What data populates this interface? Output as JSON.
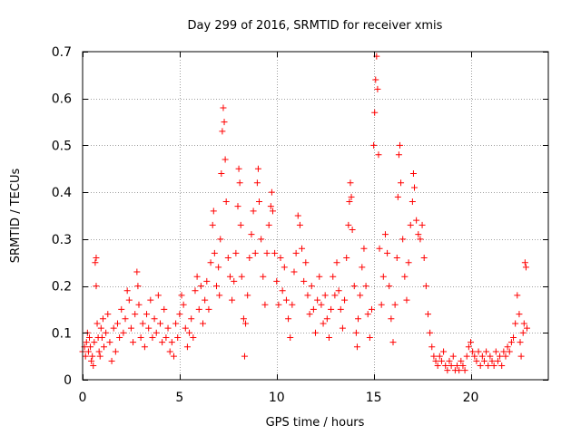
{
  "chart_data": {
    "type": "scatter",
    "title": "Day 299 of 2016, SRMTID for receiver xmis",
    "xlabel": "GPS time / hours",
    "ylabel": "SRMTID / TECUs",
    "xlim": [
      0,
      24
    ],
    "ylim": [
      0,
      0.7
    ],
    "xticks": [
      0,
      5,
      10,
      15,
      20
    ],
    "yticks": [
      0,
      0.1,
      0.2,
      0.3,
      0.4,
      0.5,
      0.6,
      0.7
    ],
    "xtick_labels": [
      "0",
      "5",
      "10",
      "15",
      "20"
    ],
    "ytick_labels": [
      "0",
      "0.1",
      "0.2",
      "0.3",
      "0.4",
      "0.5",
      "0.6",
      "0.7"
    ],
    "grid": true,
    "marker": "+",
    "color": "#ff0000",
    "series": [
      {
        "name": "SRMTID",
        "points": [
          [
            0.0,
            0.06
          ],
          [
            0.1,
            0.07
          ],
          [
            0.15,
            0.05
          ],
          [
            0.2,
            0.08
          ],
          [
            0.25,
            0.1
          ],
          [
            0.3,
            0.06
          ],
          [
            0.35,
            0.09
          ],
          [
            0.4,
            0.07
          ],
          [
            0.45,
            0.04
          ],
          [
            0.5,
            0.05
          ],
          [
            0.55,
            0.03
          ],
          [
            0.6,
            0.08
          ],
          [
            0.65,
            0.25
          ],
          [
            0.7,
            0.26
          ],
          [
            0.7,
            0.2
          ],
          [
            0.75,
            0.12
          ],
          [
            0.8,
            0.09
          ],
          [
            0.85,
            0.06
          ],
          [
            0.9,
            0.05
          ],
          [
            0.95,
            0.11
          ],
          [
            1.0,
            0.09
          ],
          [
            1.05,
            0.13
          ],
          [
            1.1,
            0.07
          ],
          [
            1.2,
            0.1
          ],
          [
            1.3,
            0.14
          ],
          [
            1.4,
            0.08
          ],
          [
            1.5,
            0.04
          ],
          [
            1.6,
            0.11
          ],
          [
            1.7,
            0.06
          ],
          [
            1.8,
            0.12
          ],
          [
            1.9,
            0.09
          ],
          [
            2.0,
            0.15
          ],
          [
            2.1,
            0.1
          ],
          [
            2.2,
            0.13
          ],
          [
            2.3,
            0.19
          ],
          [
            2.4,
            0.17
          ],
          [
            2.5,
            0.11
          ],
          [
            2.6,
            0.08
          ],
          [
            2.7,
            0.14
          ],
          [
            2.8,
            0.23
          ],
          [
            2.85,
            0.2
          ],
          [
            2.9,
            0.16
          ],
          [
            3.0,
            0.09
          ],
          [
            3.1,
            0.12
          ],
          [
            3.2,
            0.07
          ],
          [
            3.3,
            0.14
          ],
          [
            3.4,
            0.11
          ],
          [
            3.5,
            0.17
          ],
          [
            3.6,
            0.09
          ],
          [
            3.7,
            0.13
          ],
          [
            3.8,
            0.1
          ],
          [
            3.9,
            0.18
          ],
          [
            4.0,
            0.12
          ],
          [
            4.1,
            0.08
          ],
          [
            4.2,
            0.15
          ],
          [
            4.3,
            0.09
          ],
          [
            4.4,
            0.11
          ],
          [
            4.5,
            0.06
          ],
          [
            4.6,
            0.08
          ],
          [
            4.7,
            0.05
          ],
          [
            4.8,
            0.12
          ],
          [
            4.9,
            0.09
          ],
          [
            5.0,
            0.14
          ],
          [
            5.1,
            0.18
          ],
          [
            5.2,
            0.16
          ],
          [
            5.3,
            0.11
          ],
          [
            5.4,
            0.07
          ],
          [
            5.5,
            0.1
          ],
          [
            5.6,
            0.13
          ],
          [
            5.7,
            0.09
          ],
          [
            5.8,
            0.19
          ],
          [
            5.9,
            0.22
          ],
          [
            6.0,
            0.15
          ],
          [
            6.1,
            0.2
          ],
          [
            6.2,
            0.12
          ],
          [
            6.3,
            0.17
          ],
          [
            6.4,
            0.21
          ],
          [
            6.5,
            0.15
          ],
          [
            6.6,
            0.25
          ],
          [
            6.7,
            0.33
          ],
          [
            6.75,
            0.36
          ],
          [
            6.8,
            0.27
          ],
          [
            6.9,
            0.2
          ],
          [
            7.0,
            0.24
          ],
          [
            7.05,
            0.18
          ],
          [
            7.1,
            0.3
          ],
          [
            7.15,
            0.44
          ],
          [
            7.2,
            0.53
          ],
          [
            7.25,
            0.58
          ],
          [
            7.3,
            0.55
          ],
          [
            7.35,
            0.47
          ],
          [
            7.4,
            0.38
          ],
          [
            7.5,
            0.26
          ],
          [
            7.6,
            0.22
          ],
          [
            7.7,
            0.17
          ],
          [
            7.8,
            0.21
          ],
          [
            7.9,
            0.27
          ],
          [
            8.0,
            0.37
          ],
          [
            8.05,
            0.45
          ],
          [
            8.1,
            0.42
          ],
          [
            8.15,
            0.33
          ],
          [
            8.2,
            0.22
          ],
          [
            8.3,
            0.13
          ],
          [
            8.35,
            0.05
          ],
          [
            8.4,
            0.12
          ],
          [
            8.5,
            0.18
          ],
          [
            8.6,
            0.26
          ],
          [
            8.7,
            0.31
          ],
          [
            8.8,
            0.36
          ],
          [
            8.9,
            0.27
          ],
          [
            9.0,
            0.42
          ],
          [
            9.05,
            0.45
          ],
          [
            9.1,
            0.38
          ],
          [
            9.2,
            0.3
          ],
          [
            9.3,
            0.22
          ],
          [
            9.4,
            0.16
          ],
          [
            9.5,
            0.27
          ],
          [
            9.6,
            0.33
          ],
          [
            9.7,
            0.37
          ],
          [
            9.75,
            0.4
          ],
          [
            9.8,
            0.36
          ],
          [
            9.9,
            0.27
          ],
          [
            10.0,
            0.21
          ],
          [
            10.1,
            0.16
          ],
          [
            10.2,
            0.26
          ],
          [
            10.3,
            0.19
          ],
          [
            10.4,
            0.24
          ],
          [
            10.5,
            0.17
          ],
          [
            10.6,
            0.13
          ],
          [
            10.7,
            0.09
          ],
          [
            10.8,
            0.16
          ],
          [
            10.9,
            0.23
          ],
          [
            11.0,
            0.27
          ],
          [
            11.1,
            0.35
          ],
          [
            11.2,
            0.33
          ],
          [
            11.3,
            0.28
          ],
          [
            11.4,
            0.21
          ],
          [
            11.5,
            0.25
          ],
          [
            11.6,
            0.18
          ],
          [
            11.7,
            0.14
          ],
          [
            11.8,
            0.2
          ],
          [
            11.9,
            0.15
          ],
          [
            12.0,
            0.1
          ],
          [
            12.1,
            0.17
          ],
          [
            12.2,
            0.22
          ],
          [
            12.3,
            0.16
          ],
          [
            12.4,
            0.12
          ],
          [
            12.5,
            0.18
          ],
          [
            12.6,
            0.13
          ],
          [
            12.7,
            0.09
          ],
          [
            12.8,
            0.15
          ],
          [
            12.9,
            0.22
          ],
          [
            13.0,
            0.18
          ],
          [
            13.1,
            0.25
          ],
          [
            13.2,
            0.19
          ],
          [
            13.3,
            0.15
          ],
          [
            13.4,
            0.11
          ],
          [
            13.5,
            0.17
          ],
          [
            13.6,
            0.26
          ],
          [
            13.7,
            0.33
          ],
          [
            13.75,
            0.38
          ],
          [
            13.8,
            0.42
          ],
          [
            13.85,
            0.39
          ],
          [
            13.9,
            0.32
          ],
          [
            14.0,
            0.2
          ],
          [
            14.1,
            0.1
          ],
          [
            14.15,
            0.07
          ],
          [
            14.2,
            0.13
          ],
          [
            14.3,
            0.18
          ],
          [
            14.4,
            0.24
          ],
          [
            14.5,
            0.28
          ],
          [
            14.6,
            0.2
          ],
          [
            14.7,
            0.14
          ],
          [
            14.8,
            0.09
          ],
          [
            14.9,
            0.15
          ],
          [
            15.0,
            0.5
          ],
          [
            15.05,
            0.57
          ],
          [
            15.1,
            0.64
          ],
          [
            15.15,
            0.69
          ],
          [
            15.2,
            0.62
          ],
          [
            15.25,
            0.48
          ],
          [
            15.3,
            0.28
          ],
          [
            15.4,
            0.16
          ],
          [
            15.5,
            0.22
          ],
          [
            15.6,
            0.31
          ],
          [
            15.7,
            0.27
          ],
          [
            15.8,
            0.2
          ],
          [
            15.9,
            0.13
          ],
          [
            16.0,
            0.08
          ],
          [
            16.1,
            0.16
          ],
          [
            16.2,
            0.26
          ],
          [
            16.25,
            0.39
          ],
          [
            16.3,
            0.48
          ],
          [
            16.35,
            0.5
          ],
          [
            16.4,
            0.42
          ],
          [
            16.5,
            0.3
          ],
          [
            16.6,
            0.22
          ],
          [
            16.7,
            0.17
          ],
          [
            16.8,
            0.25
          ],
          [
            16.9,
            0.33
          ],
          [
            17.0,
            0.38
          ],
          [
            17.05,
            0.44
          ],
          [
            17.1,
            0.41
          ],
          [
            17.2,
            0.34
          ],
          [
            17.3,
            0.31
          ],
          [
            17.4,
            0.3
          ],
          [
            17.5,
            0.33
          ],
          [
            17.6,
            0.26
          ],
          [
            17.7,
            0.2
          ],
          [
            17.8,
            0.14
          ],
          [
            17.9,
            0.1
          ],
          [
            18.0,
            0.07
          ],
          [
            18.1,
            0.05
          ],
          [
            18.2,
            0.04
          ],
          [
            18.3,
            0.03
          ],
          [
            18.4,
            0.05
          ],
          [
            18.5,
            0.04
          ],
          [
            18.6,
            0.06
          ],
          [
            18.7,
            0.03
          ],
          [
            18.8,
            0.02
          ],
          [
            18.9,
            0.04
          ],
          [
            19.0,
            0.03
          ],
          [
            19.1,
            0.05
          ],
          [
            19.2,
            0.02
          ],
          [
            19.3,
            0.03
          ],
          [
            19.4,
            0.02
          ],
          [
            19.5,
            0.04
          ],
          [
            19.6,
            0.03
          ],
          [
            19.7,
            0.02
          ],
          [
            19.8,
            0.05
          ],
          [
            19.9,
            0.07
          ],
          [
            20.0,
            0.08
          ],
          [
            20.1,
            0.06
          ],
          [
            20.2,
            0.05
          ],
          [
            20.3,
            0.04
          ],
          [
            20.4,
            0.06
          ],
          [
            20.5,
            0.03
          ],
          [
            20.6,
            0.05
          ],
          [
            20.7,
            0.04
          ],
          [
            20.8,
            0.06
          ],
          [
            20.9,
            0.03
          ],
          [
            21.0,
            0.05
          ],
          [
            21.1,
            0.04
          ],
          [
            21.2,
            0.03
          ],
          [
            21.3,
            0.06
          ],
          [
            21.4,
            0.04
          ],
          [
            21.5,
            0.05
          ],
          [
            21.6,
            0.03
          ],
          [
            21.7,
            0.06
          ],
          [
            21.8,
            0.05
          ],
          [
            21.9,
            0.07
          ],
          [
            22.0,
            0.06
          ],
          [
            22.1,
            0.08
          ],
          [
            22.2,
            0.09
          ],
          [
            22.3,
            0.12
          ],
          [
            22.4,
            0.18
          ],
          [
            22.5,
            0.14
          ],
          [
            22.55,
            0.08
          ],
          [
            22.6,
            0.05
          ],
          [
            22.7,
            0.1
          ],
          [
            22.75,
            0.12
          ],
          [
            22.8,
            0.25
          ],
          [
            22.85,
            0.24
          ],
          [
            22.9,
            0.11
          ]
        ]
      }
    ]
  }
}
